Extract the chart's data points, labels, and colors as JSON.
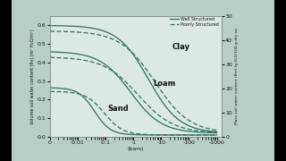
{
  "outer_bg": "#000000",
  "panel_bg": "#b8cfc8",
  "plot_bg": "#dce8e4",
  "line_color": "#2a7060",
  "text_color": "#111111",
  "ylabel_left": "Volume soil water content (θv) (m³ H₂O/m³)",
  "ylabel_right": "Mass soil water content (θm) (g H₂O/100 g dry so",
  "xlabel": "(bars)",
  "legend_well": "Well Structured",
  "legend_poorly": "Poorly Structured",
  "ylim_left": [
    0.0,
    0.65
  ],
  "ylim_right": [
    0.0,
    50
  ],
  "yticks_left": [
    0.0,
    0.1,
    0.2,
    0.3,
    0.4,
    0.5,
    0.6
  ],
  "yticks_right": [
    0,
    10,
    20,
    30,
    40,
    50
  ],
  "xtick_positions": [
    0.001,
    0.01,
    0.1,
    1,
    10,
    100,
    1000
  ],
  "xtick_labels": [
    "0",
    "-0.01",
    "-0.1",
    "-1",
    "-10",
    "-100",
    "-1000"
  ]
}
